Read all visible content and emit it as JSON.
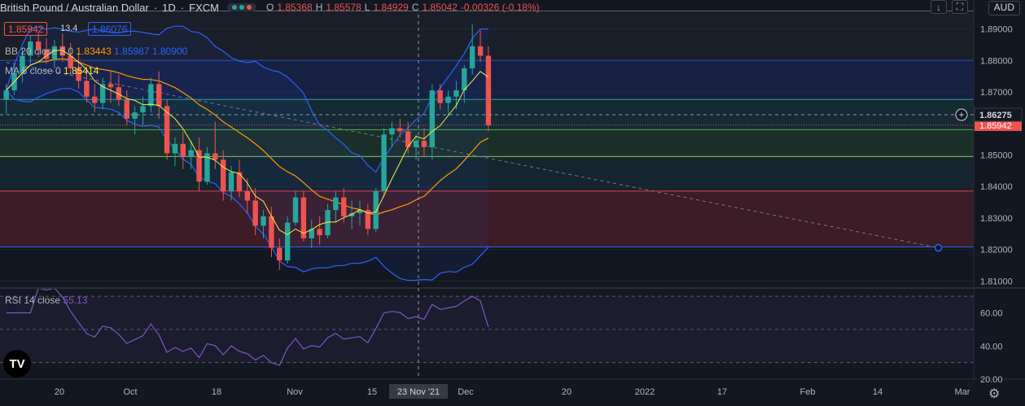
{
  "header": {
    "symbol": "British Pound / Australian Dollar",
    "interval": "1D",
    "exchange": "FXCM",
    "ohlc": {
      "o_label": "O",
      "o": "1.85368",
      "h_label": "H",
      "h": "1.85578",
      "l_label": "L",
      "l": "1.84929",
      "c_label": "C",
      "c": "1.85042",
      "change": "-0.00326 (-0.18%)"
    },
    "currency": "AUD",
    "down_arrow": "↓",
    "fullscreen": "⛶"
  },
  "trade": {
    "sell": "1.85942",
    "spread": "13.4",
    "buy": "1.86076"
  },
  "indicators": {
    "bb": {
      "label": "BB 20 close 2 0",
      "basis": "1.83443",
      "upper": "1.85987",
      "lower": "1.80900"
    },
    "ma": {
      "label": "MA 5 close 0",
      "value": "1.85414"
    },
    "rsi": {
      "label": "RSI 14 close",
      "value": "55.13"
    }
  },
  "price_axis": {
    "ticks": [
      "1.89000",
      "1.88000",
      "1.87000",
      "1.86000",
      "1.85000",
      "1.84000",
      "1.83000",
      "1.82000",
      "1.81000"
    ],
    "cursor_label": "1.86275",
    "last_label": "1.85942"
  },
  "rsi_axis": {
    "ticks": [
      "60.00",
      "40.00",
      "20.00"
    ]
  },
  "time_axis": {
    "ticks": [
      "20",
      "Oct",
      "18",
      "Nov",
      "15",
      "20",
      "2022",
      "17",
      "Feb",
      "14",
      "Mar"
    ],
    "cursor_date": "23 Nov '21",
    "dec_label": "Dec"
  },
  "colors": {
    "background": "#131722",
    "up": "#26a69a",
    "down": "#ef5350",
    "bb": "#2962ff",
    "ma": "#ffeb3b",
    "rsi": "#7e57c2",
    "basis": "#ff9800"
  },
  "chart_data": {
    "type": "candlestick",
    "price_ylim": [
      1.808,
      1.8935
    ],
    "rsi_ylim": [
      20,
      75
    ],
    "fib_levels": [
      1.8957,
      1.88,
      1.8676,
      1.858,
      1.8495,
      1.8385,
      1.8208
    ],
    "trendline": [
      [
        0,
        1.8794
      ],
      [
        116,
        1.8205
      ]
    ],
    "candles": [
      [
        1.8675,
        1.8725,
        1.863,
        1.8705
      ],
      [
        1.8705,
        1.879,
        1.869,
        1.876
      ],
      [
        1.876,
        1.884,
        1.873,
        1.8815
      ],
      [
        1.8815,
        1.888,
        1.879,
        1.886
      ],
      [
        1.886,
        1.889,
        1.881,
        1.8835
      ],
      [
        1.8835,
        1.887,
        1.879,
        1.8805
      ],
      [
        1.8805,
        1.8865,
        1.8775,
        1.8845
      ],
      [
        1.8845,
        1.8885,
        1.8795,
        1.8815
      ],
      [
        1.8815,
        1.8855,
        1.8755,
        1.8775
      ],
      [
        1.8775,
        1.8825,
        1.871,
        1.8735
      ],
      [
        1.8735,
        1.8765,
        1.8665,
        1.8685
      ],
      [
        1.8685,
        1.8725,
        1.8635,
        1.8665
      ],
      [
        1.8665,
        1.8745,
        1.8645,
        1.8725
      ],
      [
        1.8725,
        1.8765,
        1.8665,
        1.8715
      ],
      [
        1.8715,
        1.8755,
        1.8655,
        1.8675
      ],
      [
        1.8675,
        1.8705,
        1.8595,
        1.8615
      ],
      [
        1.8615,
        1.8655,
        1.8565,
        1.8635
      ],
      [
        1.8635,
        1.8685,
        1.8595,
        1.8655
      ],
      [
        1.8655,
        1.8745,
        1.8635,
        1.8725
      ],
      [
        1.8725,
        1.8765,
        1.8615,
        1.8655
      ],
      [
        1.8655,
        1.8675,
        1.8485,
        1.8505
      ],
      [
        1.8505,
        1.8555,
        1.8465,
        1.8535
      ],
      [
        1.8535,
        1.8575,
        1.8455,
        1.8495
      ],
      [
        1.8495,
        1.8545,
        1.8455,
        1.8515
      ],
      [
        1.8515,
        1.8555,
        1.8385,
        1.8415
      ],
      [
        1.8415,
        1.8525,
        1.8405,
        1.8505
      ],
      [
        1.8505,
        1.8605,
        1.8455,
        1.8485
      ],
      [
        1.8485,
        1.8515,
        1.8355,
        1.8385
      ],
      [
        1.8385,
        1.8465,
        1.8355,
        1.8445
      ],
      [
        1.8445,
        1.8485,
        1.8365,
        1.8385
      ],
      [
        1.8385,
        1.8425,
        1.8315,
        1.8355
      ],
      [
        1.8355,
        1.8395,
        1.8245,
        1.8275
      ],
      [
        1.8275,
        1.8325,
        1.8235,
        1.8305
      ],
      [
        1.8305,
        1.8335,
        1.8175,
        1.8205
      ],
      [
        1.8205,
        1.8235,
        1.8135,
        1.8165
      ],
      [
        1.8165,
        1.8305,
        1.8155,
        1.8285
      ],
      [
        1.8285,
        1.8385,
        1.8275,
        1.8365
      ],
      [
        1.8365,
        1.8385,
        1.8225,
        1.8235
      ],
      [
        1.8235,
        1.8295,
        1.8205,
        1.8265
      ],
      [
        1.8265,
        1.8305,
        1.8215,
        1.8245
      ],
      [
        1.8245,
        1.8345,
        1.8235,
        1.8325
      ],
      [
        1.8325,
        1.8385,
        1.8285,
        1.8365
      ],
      [
        1.8365,
        1.8395,
        1.8285,
        1.8305
      ],
      [
        1.8305,
        1.8355,
        1.8265,
        1.8315
      ],
      [
        1.8315,
        1.8355,
        1.8275,
        1.8325
      ],
      [
        1.8325,
        1.8345,
        1.8245,
        1.8265
      ],
      [
        1.8265,
        1.8395,
        1.8255,
        1.8385
      ],
      [
        1.8385,
        1.8585,
        1.8365,
        1.8565
      ],
      [
        1.8565,
        1.8605,
        1.8525,
        1.8585
      ],
      [
        1.8585,
        1.8615,
        1.8555,
        1.8575
      ],
      [
        1.8575,
        1.8605,
        1.8505,
        1.8525
      ],
      [
        1.8525,
        1.8565,
        1.8485,
        1.8545
      ],
      [
        1.8545,
        1.8585,
        1.8495,
        1.8525
      ],
      [
        1.8525,
        1.8725,
        1.8485,
        1.8705
      ],
      [
        1.8705,
        1.8725,
        1.8645,
        1.8665
      ],
      [
        1.8665,
        1.8705,
        1.8625,
        1.8685
      ],
      [
        1.8685,
        1.8735,
        1.8645,
        1.8705
      ],
      [
        1.8705,
        1.8785,
        1.8665,
        1.8775
      ],
      [
        1.8775,
        1.8915,
        1.8755,
        1.8845
      ],
      [
        1.8845,
        1.8895,
        1.8795,
        1.8815
      ],
      [
        1.8815,
        1.8845,
        1.8575,
        1.8594
      ]
    ]
  }
}
